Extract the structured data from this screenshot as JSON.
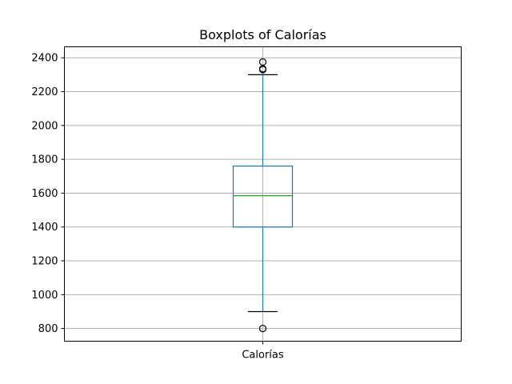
{
  "chart_data": {
    "type": "boxplot",
    "title": "Boxplots of Calorías",
    "categories": [
      "Calorías"
    ],
    "xlabel": "",
    "ylabel": "",
    "ylim": [
      725,
      2465
    ],
    "yticks": [
      800,
      1000,
      1200,
      1400,
      1600,
      1800,
      2000,
      2200,
      2400
    ],
    "grid": true,
    "boxes": [
      {
        "category": "Calorías",
        "whisker_low": 900,
        "q1": 1400,
        "median": 1585,
        "q3": 1760,
        "whisker_high": 2300,
        "outliers": [
          800,
          2330,
          2335,
          2375
        ]
      }
    ],
    "colors": {
      "box": "#1f77b4",
      "median": "#2ca02c",
      "whisker_cap": "#000000",
      "grid": "#b0b0b0"
    }
  }
}
